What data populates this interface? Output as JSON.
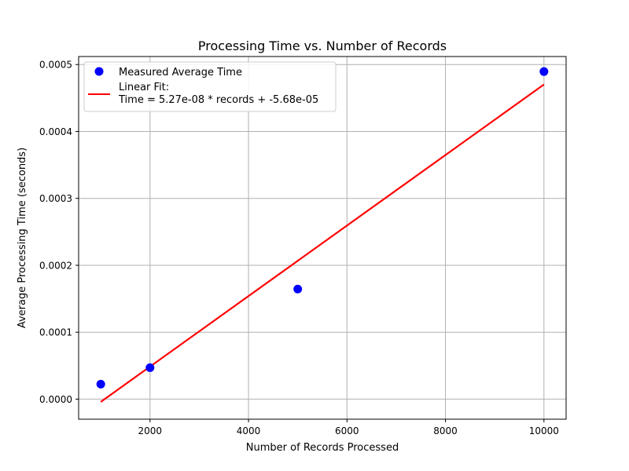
{
  "chart_data": {
    "type": "scatter",
    "title": "Processing Time vs. Number of Records",
    "xlabel": "Number of Records Processed",
    "ylabel": "Average Processing Time (seconds)",
    "xlim": [
      550,
      10450
    ],
    "ylim": [
      -3e-05,
      0.000512
    ],
    "xticks": [
      2000,
      4000,
      6000,
      8000,
      10000
    ],
    "xtick_labels": [
      "2000",
      "4000",
      "6000",
      "8000",
      "10000"
    ],
    "yticks": [
      0.0,
      0.0001,
      0.0002,
      0.0003,
      0.0004,
      0.0005
    ],
    "ytick_labels": [
      "0.0000",
      "0.0001",
      "0.0002",
      "0.0003",
      "0.0004",
      "0.0005"
    ],
    "grid": true,
    "legend_position": "top-left",
    "series": [
      {
        "name": "Measured Average Time",
        "kind": "points",
        "color": "#0000ff",
        "x": [
          1000,
          2000,
          5000,
          10000
        ],
        "y": [
          2.23e-05,
          4.7e-05,
          0.0001645,
          0.0004895
        ]
      },
      {
        "name": "Linear Fit:\nTime = 5.27e-08 * records + -5.68e-05",
        "kind": "line",
        "color": "#ff0000",
        "x": [
          1000,
          10000
        ],
        "y": [
          -4.1e-06,
          0.0004702
        ]
      }
    ]
  }
}
